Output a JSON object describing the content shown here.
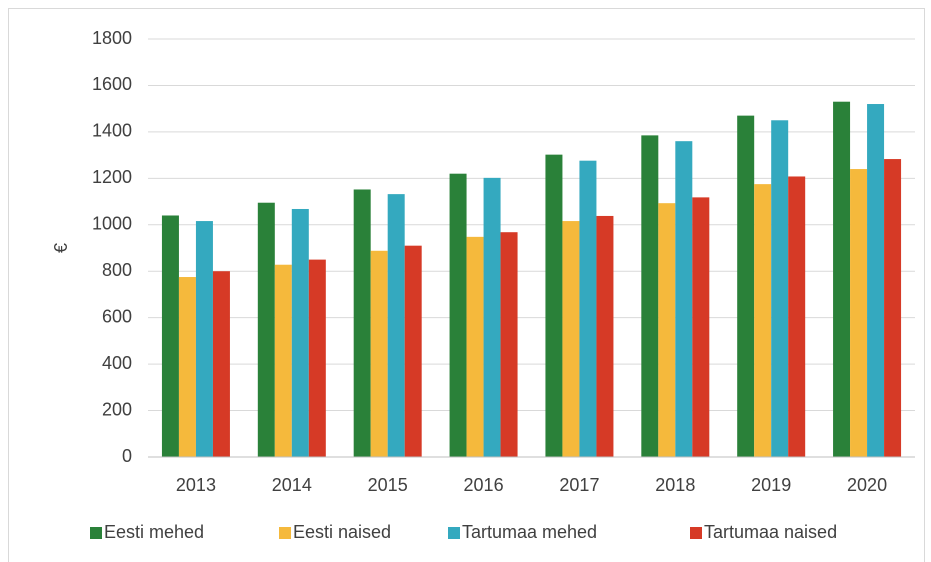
{
  "chart_data": {
    "type": "bar",
    "y_label": "€",
    "categories": [
      "2013",
      "2014",
      "2015",
      "2016",
      "2017",
      "2018",
      "2019",
      "2020"
    ],
    "series": [
      {
        "name": "Eesti mehed",
        "color": "#2a8139",
        "values": [
          1040,
          1095,
          1152,
          1220,
          1302,
          1385,
          1470,
          1530
        ]
      },
      {
        "name": "Eesti naised",
        "color": "#f5b93c",
        "values": [
          775,
          828,
          888,
          948,
          1016,
          1093,
          1175,
          1240
        ]
      },
      {
        "name": "Tartumaa mehed",
        "color": "#34a9bf",
        "values": [
          1016,
          1068,
          1132,
          1202,
          1276,
          1360,
          1450,
          1520
        ]
      },
      {
        "name": "Tartumaa naised",
        "color": "#d63a26",
        "values": [
          800,
          850,
          910,
          968,
          1038,
          1118,
          1208,
          1283
        ]
      }
    ],
    "ylim": [
      0,
      1800
    ],
    "yticks": [
      0,
      200,
      400,
      600,
      800,
      1000,
      1200,
      1400,
      1600,
      1800
    ],
    "grid": true,
    "legend": "bottom"
  }
}
